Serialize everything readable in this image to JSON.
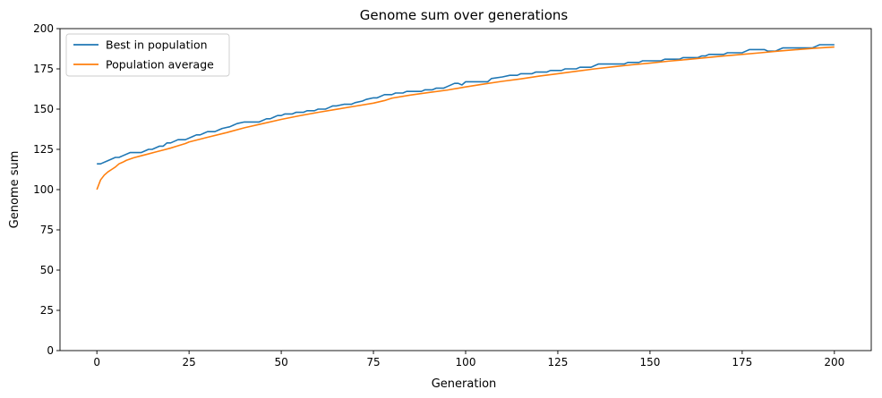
{
  "chart_data": {
    "type": "line",
    "title": "Genome sum over generations",
    "xlabel": "Generation",
    "ylabel": "Genome sum",
    "xlim": [
      -10,
      210
    ],
    "ylim": [
      0,
      200
    ],
    "xticks": [
      0,
      25,
      50,
      75,
      100,
      125,
      150,
      175,
      200
    ],
    "yticks": [
      0,
      25,
      50,
      75,
      100,
      125,
      150,
      175,
      200
    ],
    "grid": false,
    "legend_position": "top-left",
    "series": [
      {
        "name": "Best in population",
        "color": "#1f77b4",
        "points": [
          [
            0,
            116
          ],
          [
            1,
            116
          ],
          [
            3,
            118
          ],
          [
            5,
            120
          ],
          [
            6,
            120
          ],
          [
            7,
            121
          ],
          [
            9,
            123
          ],
          [
            12,
            123
          ],
          [
            14,
            125
          ],
          [
            15,
            125
          ],
          [
            17,
            127
          ],
          [
            18,
            127
          ],
          [
            19,
            129
          ],
          [
            20,
            129
          ],
          [
            22,
            131
          ],
          [
            24,
            131
          ],
          [
            26,
            133
          ],
          [
            27,
            134
          ],
          [
            28,
            134
          ],
          [
            29,
            135
          ],
          [
            30,
            136
          ],
          [
            32,
            136
          ],
          [
            33,
            137
          ],
          [
            34,
            138
          ],
          [
            36,
            139
          ],
          [
            37,
            140
          ],
          [
            38,
            141
          ],
          [
            40,
            142
          ],
          [
            44,
            142
          ],
          [
            46,
            144
          ],
          [
            47,
            144
          ],
          [
            48,
            145
          ],
          [
            49,
            146
          ],
          [
            50,
            146
          ],
          [
            51,
            147
          ],
          [
            53,
            147
          ],
          [
            54,
            148
          ],
          [
            56,
            148
          ],
          [
            57,
            149
          ],
          [
            59,
            149
          ],
          [
            60,
            150
          ],
          [
            62,
            150
          ],
          [
            63,
            151
          ],
          [
            64,
            152
          ],
          [
            65,
            152
          ],
          [
            67,
            153
          ],
          [
            69,
            153
          ],
          [
            70,
            154
          ],
          [
            72,
            155
          ],
          [
            73,
            156
          ],
          [
            75,
            157
          ],
          [
            76,
            157
          ],
          [
            78,
            159
          ],
          [
            80,
            159
          ],
          [
            81,
            160
          ],
          [
            83,
            160
          ],
          [
            84,
            161
          ],
          [
            88,
            161
          ],
          [
            89,
            162
          ],
          [
            91,
            162
          ],
          [
            92,
            163
          ],
          [
            94,
            163
          ],
          [
            95,
            164
          ],
          [
            97,
            166
          ],
          [
            98,
            166
          ],
          [
            99,
            165
          ],
          [
            100,
            167
          ],
          [
            106,
            167
          ],
          [
            107,
            169
          ],
          [
            110,
            170
          ],
          [
            112,
            171
          ],
          [
            114,
            171
          ],
          [
            115,
            172
          ],
          [
            118,
            172
          ],
          [
            119,
            173
          ],
          [
            122,
            173
          ],
          [
            123,
            174
          ],
          [
            126,
            174
          ],
          [
            127,
            175
          ],
          [
            130,
            175
          ],
          [
            131,
            176
          ],
          [
            134,
            176
          ],
          [
            135,
            177
          ],
          [
            136,
            178
          ],
          [
            143,
            178
          ],
          [
            144,
            179
          ],
          [
            147,
            179
          ],
          [
            148,
            180
          ],
          [
            153,
            180
          ],
          [
            154,
            181
          ],
          [
            158,
            181
          ],
          [
            159,
            182
          ],
          [
            163,
            182
          ],
          [
            164,
            183
          ],
          [
            165,
            183
          ],
          [
            166,
            184
          ],
          [
            170,
            184
          ],
          [
            171,
            185
          ],
          [
            175,
            185
          ],
          [
            176,
            186
          ],
          [
            177,
            187
          ],
          [
            181,
            187
          ],
          [
            182,
            186
          ],
          [
            184,
            186
          ],
          [
            185,
            187
          ],
          [
            186,
            188
          ],
          [
            194,
            188
          ],
          [
            195,
            189
          ],
          [
            196,
            190
          ],
          [
            200,
            190
          ]
        ]
      },
      {
        "name": "Population average",
        "color": "#ff7f0e",
        "points": [
          [
            0,
            100
          ],
          [
            1,
            106
          ],
          [
            2,
            109
          ],
          [
            3,
            111
          ],
          [
            4,
            112.5
          ],
          [
            5,
            114
          ],
          [
            6,
            116
          ],
          [
            7,
            117
          ],
          [
            8,
            118.2
          ],
          [
            10,
            119.8
          ],
          [
            12,
            121
          ],
          [
            14,
            122.2
          ],
          [
            16,
            123.4
          ],
          [
            18,
            124.6
          ],
          [
            20,
            125.8
          ],
          [
            22,
            127.2
          ],
          [
            24,
            128.6
          ],
          [
            25,
            129.6
          ],
          [
            30,
            132.5
          ],
          [
            35,
            135.3
          ],
          [
            40,
            138.4
          ],
          [
            45,
            141
          ],
          [
            50,
            143.6
          ],
          [
            55,
            145.9
          ],
          [
            60,
            148
          ],
          [
            65,
            149.9
          ],
          [
            70,
            151.8
          ],
          [
            75,
            153.7
          ],
          [
            78,
            155.3
          ],
          [
            80,
            156.8
          ],
          [
            85,
            158.7
          ],
          [
            90,
            160.3
          ],
          [
            95,
            161.8
          ],
          [
            100,
            163.8
          ],
          [
            105,
            165.6
          ],
          [
            110,
            167.3
          ],
          [
            115,
            168.8
          ],
          [
            120,
            170.5
          ],
          [
            125,
            172
          ],
          [
            130,
            173.5
          ],
          [
            135,
            175
          ],
          [
            140,
            176.3
          ],
          [
            145,
            177.5
          ],
          [
            150,
            178.6
          ],
          [
            155,
            179.8
          ],
          [
            160,
            180.8
          ],
          [
            165,
            181.9
          ],
          [
            170,
            183
          ],
          [
            175,
            184
          ],
          [
            180,
            185
          ],
          [
            185,
            186.1
          ],
          [
            190,
            187
          ],
          [
            195,
            187.9
          ],
          [
            200,
            188.6
          ]
        ]
      }
    ]
  }
}
